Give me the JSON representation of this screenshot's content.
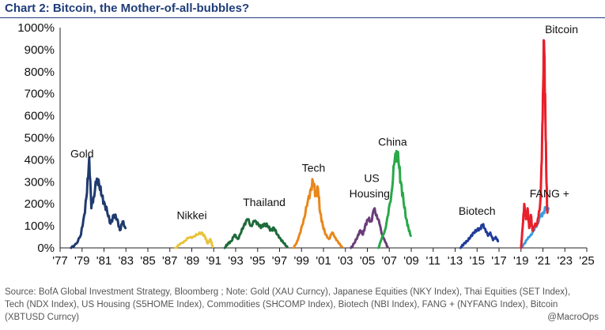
{
  "title": "Chart 2:  Bitcoin, the Mother-of-all-bubbles?",
  "source": "Source:  BofA Global Investment Strategy, Bloomberg ; Note: Gold (XAU Curncy), Japanese Equities (NKY Index), Thai Equities (SET Index), Tech (NDX Index), US Housing (S5HOME Index), Commodities (SHCOMP Index), Biotech (NBI Index), FANG + (NYFANG Index), Bitcoin (XBTUSD Curncy)",
  "watermark": "@MacroOps",
  "chart_data": {
    "type": "line",
    "title": "Bitcoin, the Mother-of-all-bubbles?",
    "ylabel": "",
    "xlabel": "",
    "ylim": [
      0,
      1000
    ],
    "xlim": [
      1977,
      2025
    ],
    "yticks": [
      0,
      100,
      200,
      300,
      400,
      500,
      600,
      700,
      800,
      900,
      1000
    ],
    "ytick_labels": [
      "0%",
      "100%",
      "200%",
      "300%",
      "400%",
      "500%",
      "600%",
      "700%",
      "800%",
      "900%",
      "1000%"
    ],
    "xticks": [
      1977,
      1979,
      1981,
      1983,
      1985,
      1987,
      1989,
      1991,
      1993,
      1995,
      1997,
      1999,
      2001,
      2003,
      2005,
      2007,
      2009,
      2011,
      2013,
      2015,
      2017,
      2019,
      2021,
      2023,
      2025
    ],
    "xtick_labels": [
      "'77",
      "'79",
      "'81",
      "'83",
      "'85",
      "'87",
      "'89",
      "'91",
      "'93",
      "'95",
      "'97",
      "'99",
      "'01",
      "'03",
      "'05",
      "'07",
      "'09",
      "'11",
      "'13",
      "'15",
      "'17",
      "'19",
      "'21",
      "'23",
      "'25"
    ],
    "series": [
      {
        "name": "Gold",
        "color": "#1f3a6e",
        "points": [
          [
            1978.0,
            0
          ],
          [
            1978.5,
            20
          ],
          [
            1978.9,
            60
          ],
          [
            1979.2,
            150
          ],
          [
            1979.45,
            250
          ],
          [
            1979.65,
            410
          ],
          [
            1979.85,
            180
          ],
          [
            1980.05,
            230
          ],
          [
            1980.3,
            300
          ],
          [
            1980.5,
            310
          ],
          [
            1980.75,
            240
          ],
          [
            1981.0,
            210
          ],
          [
            1981.3,
            160
          ],
          [
            1981.6,
            110
          ],
          [
            1981.9,
            150
          ],
          [
            1982.2,
            130
          ],
          [
            1982.45,
            80
          ],
          [
            1982.7,
            120
          ],
          [
            1982.95,
            90
          ]
        ]
      },
      {
        "name": "Nikkei",
        "color": "#e8c43a",
        "points": [
          [
            1987.5,
            0
          ],
          [
            1987.9,
            15
          ],
          [
            1988.3,
            30
          ],
          [
            1988.7,
            45
          ],
          [
            1989.1,
            50
          ],
          [
            1989.5,
            60
          ],
          [
            1989.9,
            70
          ],
          [
            1990.2,
            50
          ],
          [
            1990.45,
            20
          ],
          [
            1990.7,
            40
          ],
          [
            1990.9,
            5
          ]
        ]
      },
      {
        "name": "Thailand",
        "color": "#1e6a3a",
        "points": [
          [
            1992.0,
            0
          ],
          [
            1992.3,
            20
          ],
          [
            1992.6,
            30
          ],
          [
            1992.9,
            60
          ],
          [
            1993.2,
            40
          ],
          [
            1993.5,
            70
          ],
          [
            1993.8,
            110
          ],
          [
            1994.1,
            130
          ],
          [
            1994.4,
            100
          ],
          [
            1994.7,
            120
          ],
          [
            1995.0,
            115
          ],
          [
            1995.3,
            90
          ],
          [
            1995.6,
            110
          ],
          [
            1995.9,
            100
          ],
          [
            1996.2,
            80
          ],
          [
            1996.5,
            90
          ],
          [
            1996.8,
            60
          ],
          [
            1997.1,
            40
          ],
          [
            1997.4,
            20
          ],
          [
            1997.7,
            5
          ]
        ]
      },
      {
        "name": "Tech",
        "color": "#e8871a",
        "points": [
          [
            1998.3,
            0
          ],
          [
            1998.6,
            30
          ],
          [
            1998.9,
            70
          ],
          [
            1999.2,
            130
          ],
          [
            1999.5,
            190
          ],
          [
            1999.8,
            260
          ],
          [
            2000.05,
            300
          ],
          [
            2000.3,
            240
          ],
          [
            2000.5,
            270
          ],
          [
            2000.7,
            160
          ],
          [
            2000.95,
            100
          ],
          [
            2001.2,
            60
          ],
          [
            2001.5,
            40
          ],
          [
            2001.8,
            70
          ],
          [
            2002.1,
            45
          ],
          [
            2002.4,
            20
          ],
          [
            2002.7,
            5
          ]
        ]
      },
      {
        "name": "US Housing",
        "color": "#6a3d7a",
        "points": [
          [
            2003.5,
            0
          ],
          [
            2003.8,
            20
          ],
          [
            2004.1,
            50
          ],
          [
            2004.35,
            80
          ],
          [
            2004.6,
            60
          ],
          [
            2004.85,
            110
          ],
          [
            2005.1,
            130
          ],
          [
            2005.35,
            120
          ],
          [
            2005.6,
            175
          ],
          [
            2005.85,
            150
          ],
          [
            2006.1,
            110
          ],
          [
            2006.35,
            60
          ],
          [
            2006.6,
            30
          ],
          [
            2006.85,
            5
          ]
        ]
      },
      {
        "name": "China",
        "color": "#2aa84a",
        "points": [
          [
            2006.0,
            0
          ],
          [
            2006.3,
            40
          ],
          [
            2006.6,
            80
          ],
          [
            2006.9,
            150
          ],
          [
            2007.2,
            250
          ],
          [
            2007.45,
            380
          ],
          [
            2007.65,
            440
          ],
          [
            2007.85,
            390
          ],
          [
            2008.05,
            300
          ],
          [
            2008.3,
            210
          ],
          [
            2008.55,
            130
          ],
          [
            2008.75,
            90
          ],
          [
            2008.95,
            55
          ]
        ]
      },
      {
        "name": "Biotech",
        "color": "#1f3a9a",
        "points": [
          [
            2013.5,
            0
          ],
          [
            2013.8,
            20
          ],
          [
            2014.1,
            30
          ],
          [
            2014.4,
            50
          ],
          [
            2014.7,
            70
          ],
          [
            2015.0,
            80
          ],
          [
            2015.3,
            90
          ],
          [
            2015.5,
            105
          ],
          [
            2015.75,
            85
          ],
          [
            2016.0,
            55
          ],
          [
            2016.2,
            70
          ],
          [
            2016.45,
            35
          ],
          [
            2016.7,
            50
          ],
          [
            2016.9,
            30
          ]
        ]
      },
      {
        "name": "FANG +",
        "color": "#3a9ee0",
        "points": [
          [
            2019.0,
            0
          ],
          [
            2019.3,
            20
          ],
          [
            2019.6,
            40
          ],
          [
            2019.9,
            60
          ],
          [
            2020.2,
            80
          ],
          [
            2020.5,
            110
          ],
          [
            2020.75,
            140
          ],
          [
            2021.0,
            160
          ],
          [
            2021.25,
            175
          ],
          [
            2021.5,
            180
          ]
        ]
      },
      {
        "name": "Bitcoin",
        "color": "#e8202a",
        "points": [
          [
            2019.0,
            0
          ],
          [
            2019.15,
            90
          ],
          [
            2019.3,
            200
          ],
          [
            2019.45,
            130
          ],
          [
            2019.6,
            180
          ],
          [
            2019.75,
            90
          ],
          [
            2019.9,
            150
          ],
          [
            2020.05,
            80
          ],
          [
            2020.25,
            100
          ],
          [
            2020.45,
            110
          ],
          [
            2020.6,
            140
          ],
          [
            2020.75,
            200
          ],
          [
            2020.9,
            400
          ],
          [
            2021.0,
            700
          ],
          [
            2021.1,
            940
          ],
          [
            2021.2,
            700
          ],
          [
            2021.3,
            350
          ],
          [
            2021.4,
            160
          ]
        ]
      }
    ],
    "annotations": [
      {
        "series": "Gold",
        "text": "Gold",
        "x": 1979.0,
        "y": 410
      },
      {
        "series": "Nikkei",
        "text": "Nikkei",
        "x": 1989.0,
        "y": 130
      },
      {
        "series": "Thailand",
        "text": "Thailand",
        "x": 1995.6,
        "y": 190
      },
      {
        "series": "Tech",
        "text": "Tech",
        "x": 2000.1,
        "y": 345
      },
      {
        "series": "US Housing",
        "text": "US",
        "x": 2005.4,
        "y": 300
      },
      {
        "series": "US Housing",
        "text": "Housing",
        "x": 2005.2,
        "y": 230
      },
      {
        "series": "China",
        "text": "China",
        "x": 2007.3,
        "y": 465
      },
      {
        "series": "Biotech",
        "text": "Biotech",
        "x": 2015.0,
        "y": 150
      },
      {
        "series": "FANG +",
        "text": "FANG +",
        "x": 2021.6,
        "y": 230
      },
      {
        "series": "Bitcoin",
        "text": "Bitcoin",
        "x": 2022.7,
        "y": 975
      }
    ]
  }
}
